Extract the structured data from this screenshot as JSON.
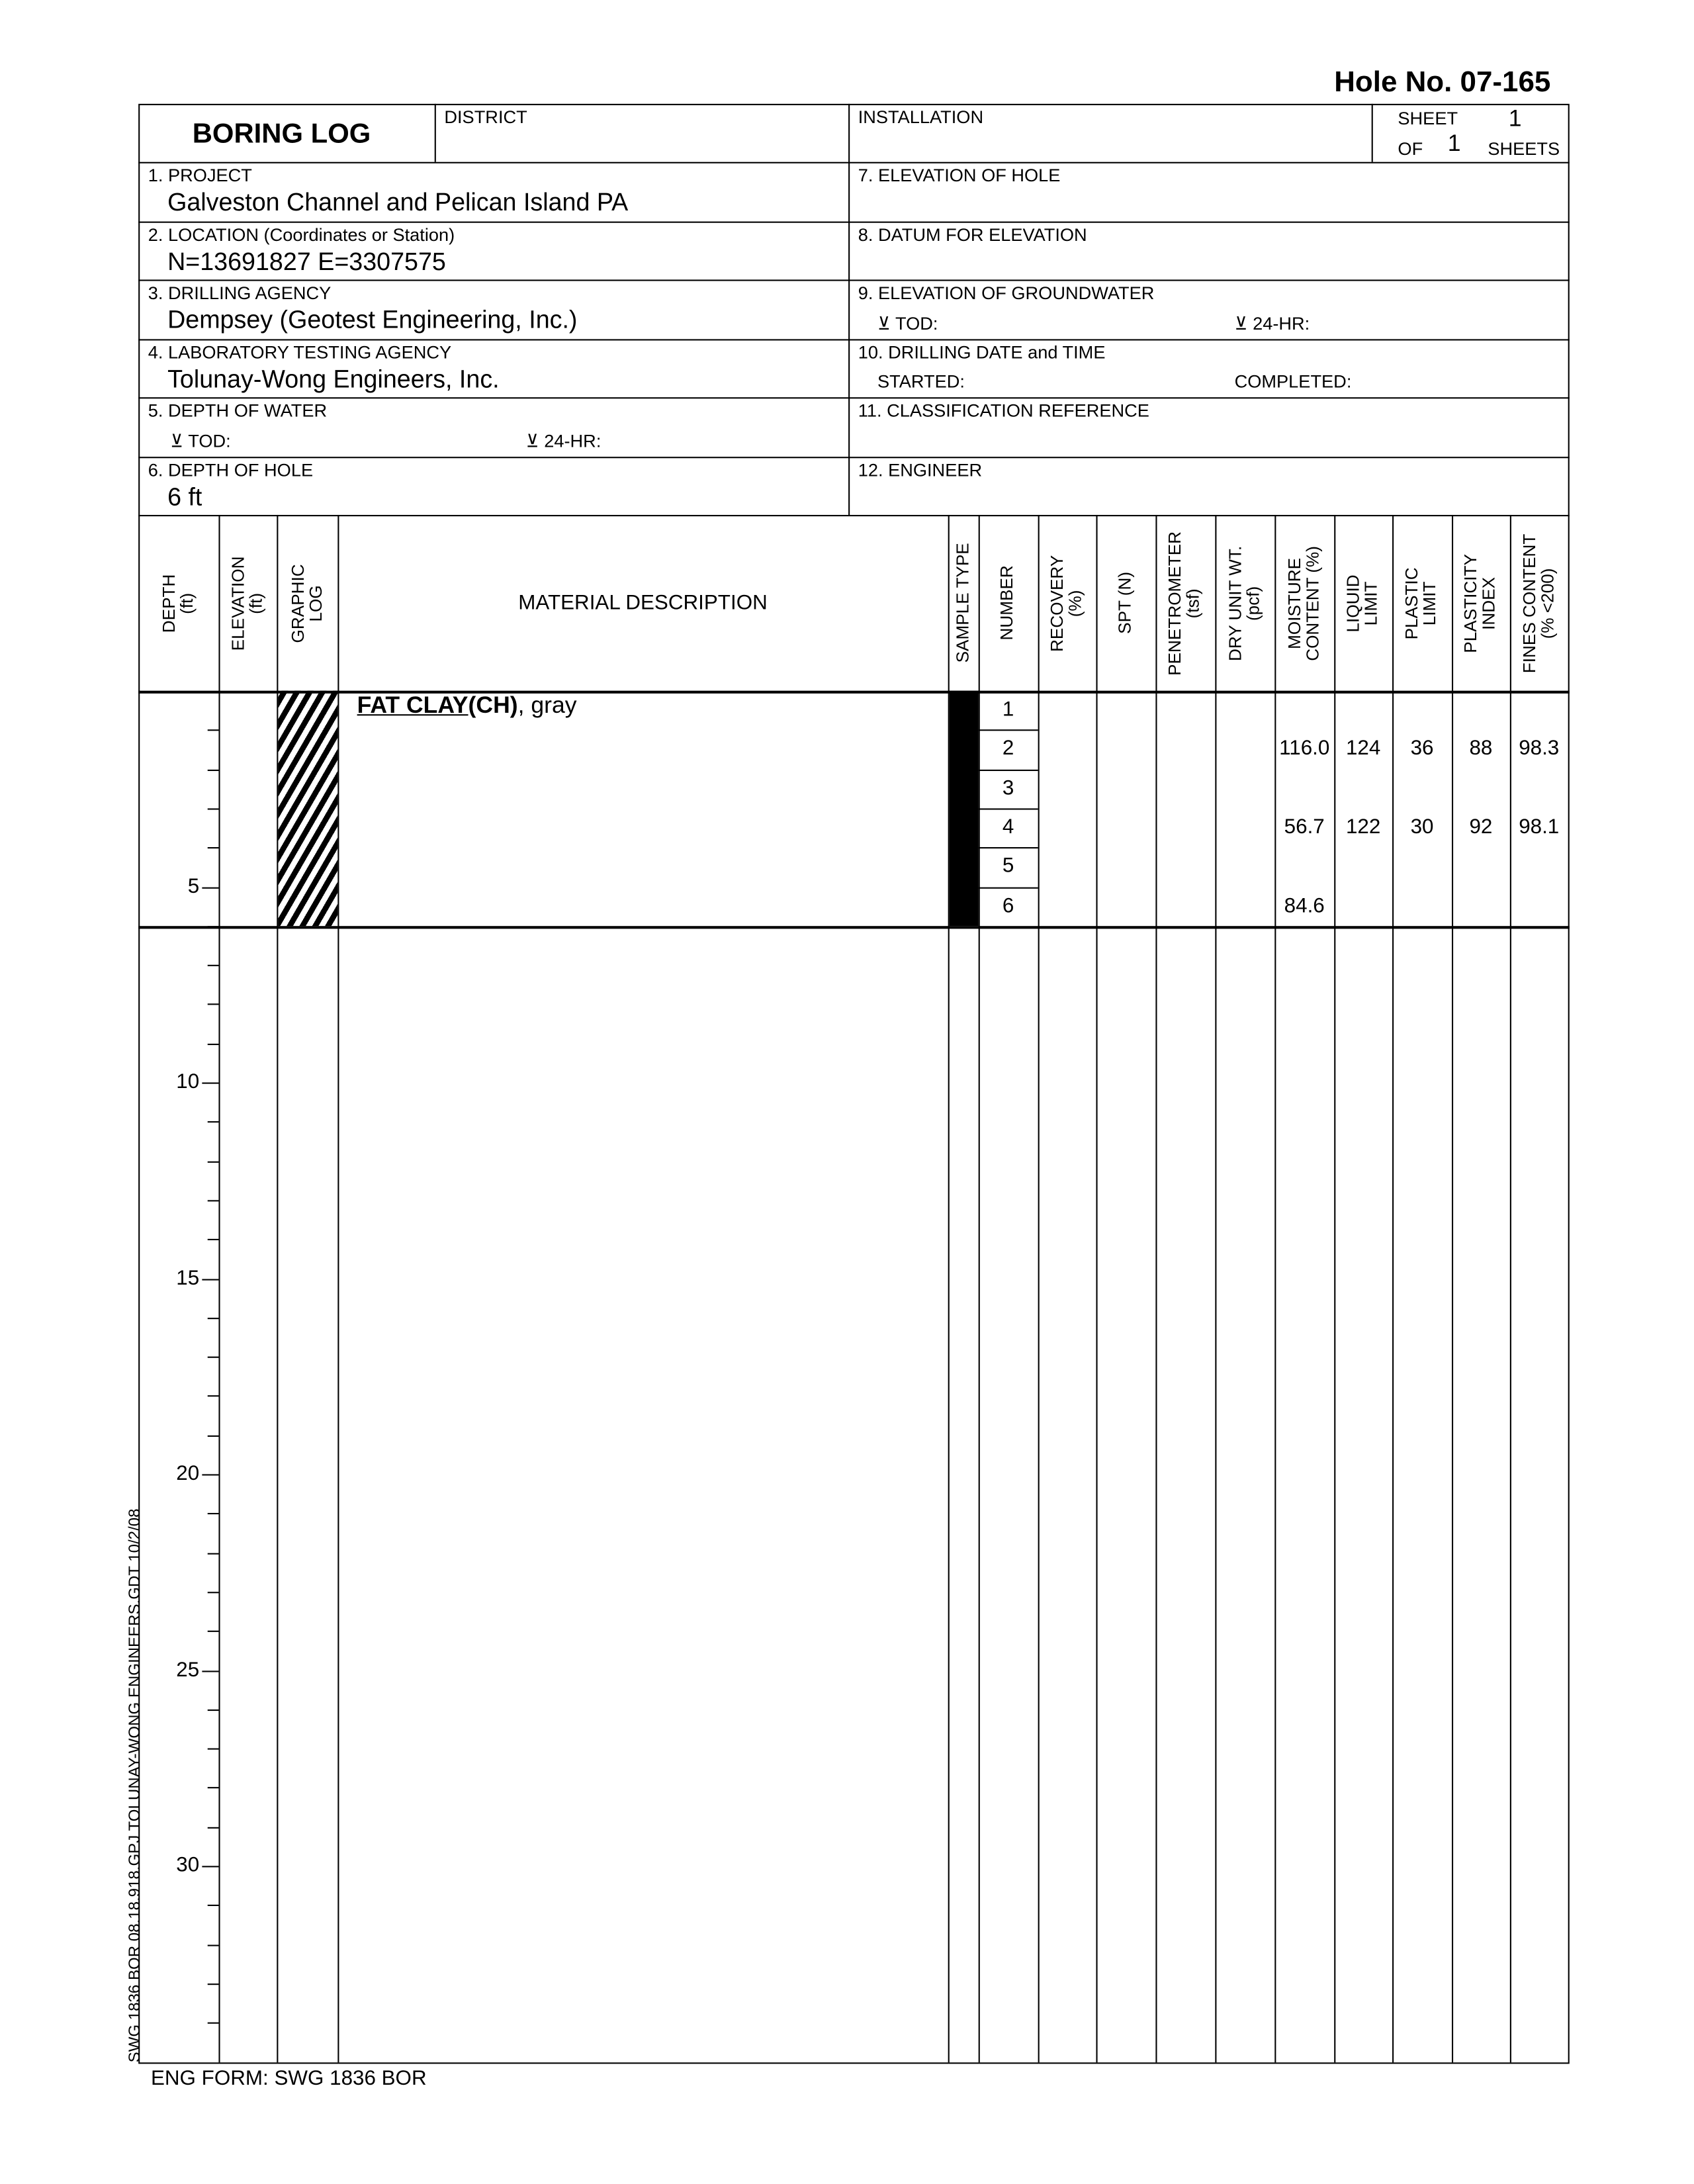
{
  "hole_no": "Hole No.  07-165",
  "header": {
    "title": "BORING LOG",
    "district": "DISTRICT",
    "installation": "INSTALLATION",
    "sheet_label": "SHEET",
    "sheet": "1",
    "of_label": "OF",
    "of": "1",
    "sheets_label": "SHEETS"
  },
  "fields": {
    "project_label": "1. PROJECT",
    "project": "Galveston Channel and Pelican Island PA",
    "location_label": "2. LOCATION (Coordinates or Station)",
    "location": "N=13691827  E=3307575",
    "agency_label": "3. DRILLING AGENCY",
    "agency": "Dempsey (Geotest Engineering, Inc.)",
    "lab_label": "4. LABORATORY TESTING AGENCY",
    "lab": "Tolunay-Wong Engineers, Inc.",
    "water_label": "5. DEPTH OF WATER",
    "water_tod": "TOD:",
    "water_24": "24-HR:",
    "hole_depth_label": "6. DEPTH OF HOLE",
    "hole_depth": "6 ft",
    "elev_label": "7. ELEVATION OF HOLE",
    "datum_label": "8. DATUM FOR ELEVATION",
    "gw_label": "9. ELEVATION OF GROUNDWATER",
    "gw_tod": "TOD:",
    "gw_24": "24-HR:",
    "date_label": "10. DRILLING DATE and TIME",
    "started": "STARTED:",
    "completed": "COMPLETED:",
    "class_label": "11. CLASSIFICATION REFERENCE",
    "engineer_label": "12. ENGINEER"
  },
  "columns": [
    "DEPTH\n(ft)",
    "ELEVATION\n(ft)",
    "GRAPHIC\nLOG",
    "MATERIAL DESCRIPTION",
    "SAMPLE TYPE",
    "NUMBER",
    "RECOVERY\n(%)",
    "SPT (N)",
    "PENETROMETER\n(tsf)",
    "DRY UNIT WT.\n(pcf)",
    "MOISTURE\nCONTENT (%)",
    "LIQUID\nLIMIT",
    "PLASTIC\nLIMIT",
    "PLASTICITY\nINDEX",
    "FINES CONTENT\n(% <200)"
  ],
  "material": {
    "name": "FAT CLAY",
    "code": "(CH)",
    "desc": ", gray"
  },
  "depth_ticks": [
    "5",
    "10",
    "15",
    "20",
    "25",
    "30"
  ],
  "samples": [
    {
      "number": "1",
      "moisture": "",
      "ll": "",
      "pl": "",
      "pi": "",
      "fines": ""
    },
    {
      "number": "2",
      "moisture": "116.0",
      "ll": "124",
      "pl": "36",
      "pi": "88",
      "fines": "98.3"
    },
    {
      "number": "3",
      "moisture": "",
      "ll": "",
      "pl": "",
      "pi": "",
      "fines": ""
    },
    {
      "number": "4",
      "moisture": "56.7",
      "ll": "122",
      "pl": "30",
      "pi": "92",
      "fines": "98.1"
    },
    {
      "number": "5",
      "moisture": "",
      "ll": "",
      "pl": "",
      "pi": "",
      "fines": ""
    },
    {
      "number": "6",
      "moisture": "84.6",
      "ll": "",
      "pl": "",
      "pi": "",
      "fines": ""
    }
  ],
  "side_note": "SWG 1836 BOR  08.18.918.GPJ  TOLUNAY-WONG ENGINEERS.GDT  10/2/08",
  "footer": "ENG FORM: SWG 1836 BOR"
}
